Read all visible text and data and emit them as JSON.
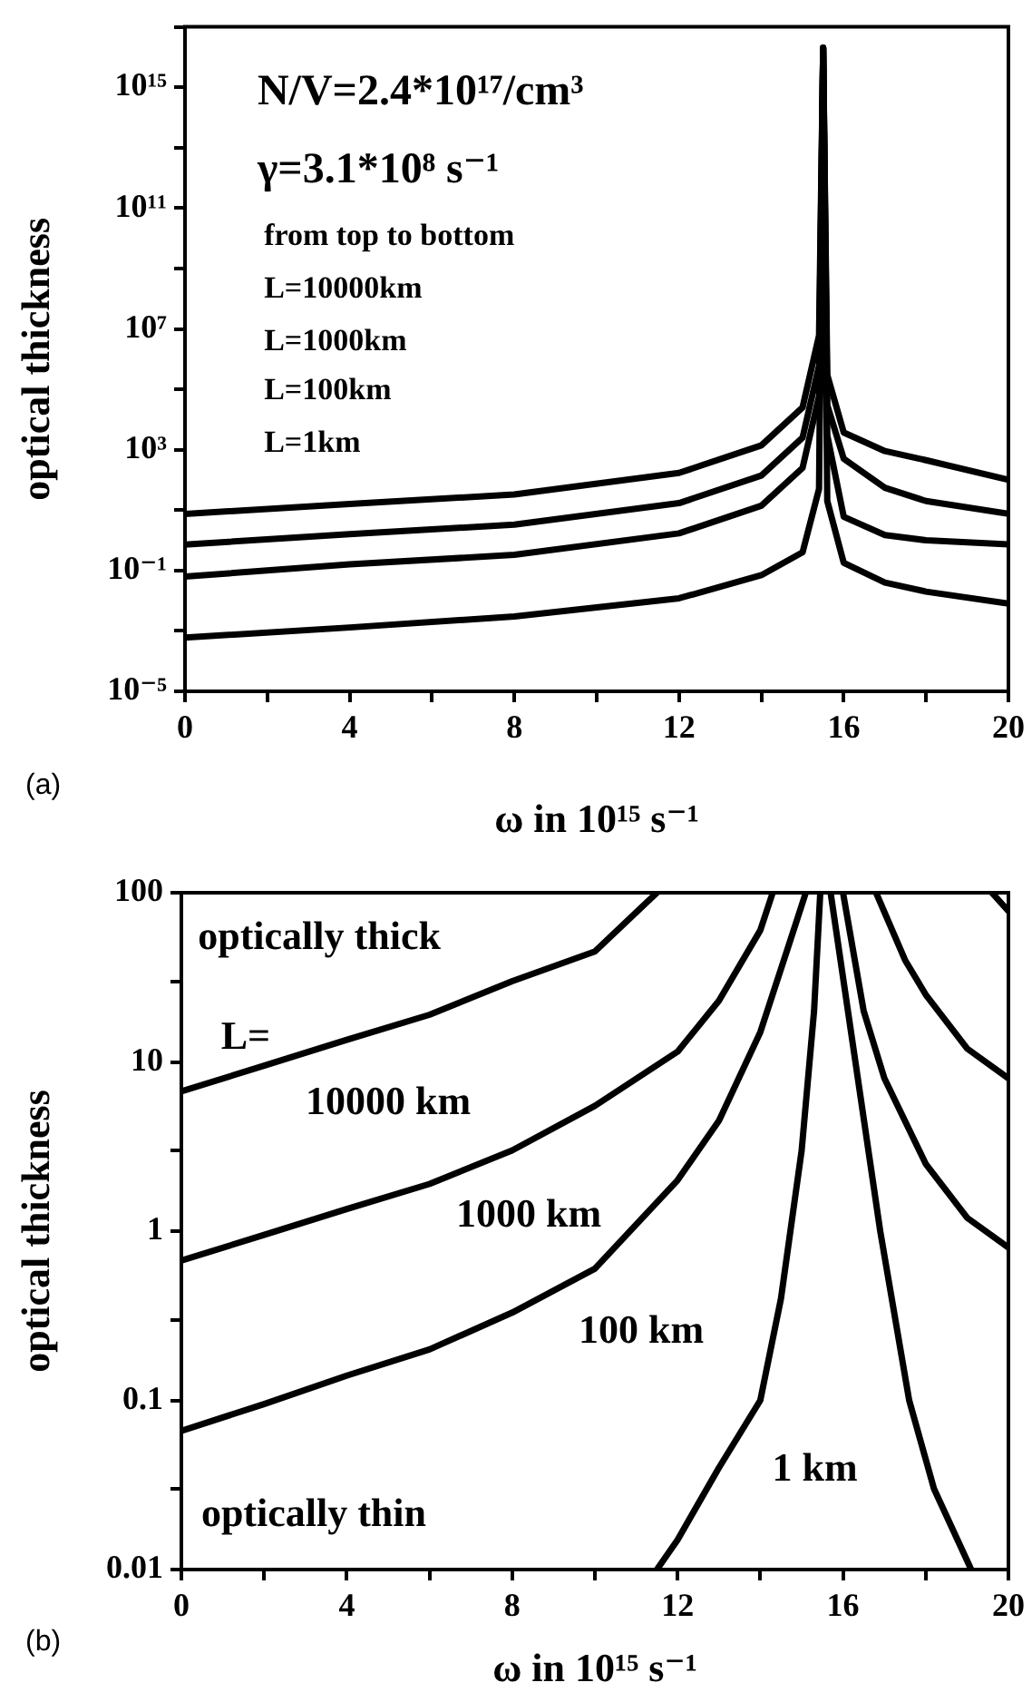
{
  "chart_data": [
    {
      "type": "line",
      "xlabel": "ω in 10¹⁵ s⁻¹",
      "ylabel": "optical thickness",
      "log": "y",
      "marker": "none",
      "line_style": "solid",
      "xlim": [
        0,
        20
      ],
      "xticks": [
        0,
        {
          "value": 2,
          "label": null
        },
        4,
        {
          "value": 6,
          "label": null
        },
        8,
        {
          "value": 10,
          "label": null
        },
        12,
        {
          "value": 14,
          "label": null
        },
        16,
        {
          "value": 18,
          "label": null
        },
        20
      ],
      "ylim": [
        1e-05,
        1e+17
      ],
      "yticks": [
        {
          "value": 1e-05,
          "label": "10⁻⁵"
        },
        {
          "value": 0.001,
          "label": null
        },
        {
          "value": 0.1,
          "label": "10⁻¹"
        },
        {
          "value": 10,
          "label": null
        },
        {
          "value": 1000,
          "label": "10³"
        },
        {
          "value": 100000.0,
          "label": null
        },
        {
          "value": 10000000.0,
          "label": "10⁷"
        },
        {
          "value": 1000000000.0,
          "label": null
        },
        {
          "value": 100000000000.0,
          "label": "10¹¹"
        },
        {
          "value": 10000000000000.0,
          "label": null
        },
        {
          "value": 1000000000000000.0,
          "label": "10¹⁵"
        },
        {
          "value": 1e+17,
          "label": null
        }
      ],
      "series": [
        {
          "color": "#000000",
          "x": [
            0,
            4,
            8,
            12,
            14,
            15,
            15.4,
            15.5,
            15.6,
            16,
            17,
            18,
            20
          ],
          "values": [
            7.5,
            16,
            33,
            170,
            1400,
            25000,
            6000000.0,
            2e+16,
            300000.0,
            3700,
            900,
            450,
            100
          ]
        },
        {
          "color": "#000000",
          "x": [
            0,
            4,
            8,
            12,
            14,
            15,
            15.4,
            15.5,
            15.6,
            16,
            17,
            18,
            20
          ],
          "values": [
            0.72,
            1.6,
            3.3,
            17,
            140,
            2500,
            600000.0,
            2e+16,
            30000.0,
            500,
            55,
            20,
            7.5
          ]
        },
        {
          "color": "#000000",
          "x": [
            0,
            4,
            8,
            12,
            14,
            15,
            15.4,
            15.5,
            15.6,
            16,
            17,
            18,
            20
          ],
          "values": [
            0.063,
            0.16,
            0.33,
            1.7,
            14,
            250,
            60000.0,
            2e+16,
            3000,
            6,
            1.5,
            1,
            0.73
          ]
        },
        {
          "color": "#000000",
          "x": [
            0,
            4,
            8,
            12,
            14,
            15,
            15.4,
            15.5,
            15.6,
            16,
            17,
            18,
            20
          ],
          "values": [
            0.0006,
            0.0013,
            0.003,
            0.012,
            0.07,
            0.4,
            50,
            2e+16,
            20,
            0.18,
            0.04,
            0.02,
            0.008
          ]
        }
      ],
      "annotations": [
        "N/V=2.4*10¹⁷/cm³",
        "γ=3.1*10⁸ s⁻¹",
        "from top to bottom",
        "L=10000km",
        "L=1000km",
        "L=100km",
        "L=1km",
        "(a)"
      ]
    },
    {
      "type": "line",
      "xlabel": "ω in 10¹⁵ s⁻¹",
      "ylabel": "optical thickness",
      "log": "y",
      "marker": "none",
      "line_style": "solid",
      "xlim": [
        0,
        20
      ],
      "xticks": [
        0,
        {
          "value": 2,
          "label": null
        },
        4,
        {
          "value": 6,
          "label": null
        },
        8,
        {
          "value": 10,
          "label": null
        },
        12,
        {
          "value": 14,
          "label": null
        },
        16,
        {
          "value": 18,
          "label": null
        },
        20
      ],
      "ylim": [
        0.01,
        100
      ],
      "yticks": [
        0.01,
        {
          "value": 0.03,
          "label": null
        },
        0.1,
        {
          "value": 0.3,
          "label": null
        },
        1,
        {
          "value": 3,
          "label": null
        },
        10,
        {
          "value": 30,
          "label": null
        },
        100
      ],
      "series": [
        {
          "color": "#000000",
          "x": [
            0,
            2,
            4,
            6,
            8,
            10,
            11.5,
            15.5,
            19.6,
            20
          ],
          "values": [
            6.7,
            9.5,
            13.5,
            19,
            30,
            45,
            100,
            null,
            100,
            78
          ]
        },
        {
          "color": "#000000",
          "x": [
            0,
            2,
            4,
            6,
            8,
            10,
            12,
            13,
            14,
            14.3,
            15.5,
            16.8,
            17.5,
            18,
            19,
            20
          ],
          "values": [
            0.67,
            0.95,
            1.35,
            1.9,
            3,
            5.5,
            11.5,
            23,
            60,
            100,
            null,
            100,
            40,
            25,
            12,
            8
          ]
        },
        {
          "color": "#000000",
          "x": [
            0,
            2,
            4,
            6,
            8,
            10,
            12,
            13,
            14,
            14.7,
            15.1,
            15.5,
            16,
            16.5,
            17,
            18,
            19,
            20
          ],
          "values": [
            0.066,
            0.095,
            0.14,
            0.2,
            0.33,
            0.6,
            2,
            4.5,
            15,
            50,
            100,
            null,
            100,
            20,
            8,
            2.5,
            1.2,
            0.8
          ]
        },
        {
          "color": "#000000",
          "x": [
            11.5,
            12,
            13,
            14,
            14.5,
            15,
            15.3,
            15.45,
            15.5,
            15.7,
            16.3,
            16.9,
            17.6,
            18.2,
            19.1
          ],
          "values": [
            0.01,
            0.015,
            0.04,
            0.1,
            0.4,
            3,
            20,
            100,
            null,
            100,
            10,
            1,
            0.1,
            0.03,
            0.01
          ]
        }
      ],
      "annotations": [
        "optically thick",
        "L=",
        "optically thin",
        "(b)",
        "10000 km",
        "1000 km",
        "100 km",
        "1 km"
      ]
    }
  ]
}
